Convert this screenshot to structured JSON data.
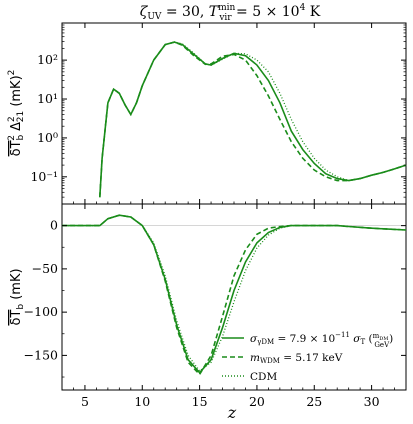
{
  "title": "ζ_UV = 30, T_vir^min = 5 × 10⁴ K",
  "colors": {
    "series": "#1a8c1a",
    "zero_line": "#c8c8c8"
  },
  "chart_data": [
    {
      "type": "line",
      "panel": "top",
      "ylabel": "δT_b² Δ²₂₁ (mK)²",
      "xlabel": "",
      "yscale": "log",
      "xlim": [
        3,
        33
      ],
      "ylim": [
        0.02,
        900
      ],
      "xticks": [
        5,
        10,
        15,
        20,
        25,
        30
      ],
      "yticks": [
        {
          "value": 0.1,
          "label": "10⁻¹"
        },
        {
          "value": 1,
          "label": "10⁰"
        },
        {
          "value": 10,
          "label": "10¹"
        },
        {
          "value": 100,
          "label": "10²"
        }
      ],
      "series": [
        {
          "name": "σ_γDM = 7.9 × 10⁻¹¹ σ_T (m_DM/GeV)",
          "style": "solid",
          "x": [
            6.3,
            6.5,
            7.0,
            7.5,
            8.0,
            8.5,
            9.0,
            9.5,
            10.0,
            11.0,
            12.0,
            12.8,
            13.5,
            14.5,
            15.5,
            16.0,
            17.0,
            18.0,
            19.0,
            20.0,
            21.0,
            22.0,
            23.0,
            24.0,
            25.0,
            26.0,
            27.0,
            28.0,
            29.0,
            30.0,
            31.0,
            32.0,
            33.0
          ],
          "y": [
            0.03,
            0.3,
            8,
            18,
            14,
            7,
            4,
            8,
            22,
            100,
            250,
            290,
            250,
            140,
            80,
            75,
            110,
            150,
            130,
            75,
            30,
            8,
            1.5,
            0.5,
            0.22,
            0.12,
            0.09,
            0.08,
            0.09,
            0.11,
            0.13,
            0.16,
            0.2
          ]
        },
        {
          "name": "m_WDM = 5.17 keV",
          "style": "dashed",
          "x": [
            6.3,
            6.5,
            7.0,
            7.5,
            8.0,
            8.5,
            9.0,
            9.5,
            10.0,
            11.0,
            12.0,
            12.8,
            13.5,
            14.5,
            15.5,
            16.0,
            17.0,
            18.0,
            19.0,
            20.0,
            21.0,
            22.0,
            23.0,
            24.0,
            25.0,
            26.0,
            27.0,
            28.0,
            29.0,
            30.0,
            31.0,
            32.0,
            33.0
          ],
          "y": [
            0.03,
            0.3,
            8,
            18,
            14,
            7,
            4,
            8,
            22,
            100,
            250,
            290,
            240,
            130,
            78,
            80,
            125,
            140,
            100,
            40,
            12,
            3,
            0.8,
            0.3,
            0.15,
            0.1,
            0.08,
            0.08,
            0.09,
            0.11,
            0.13,
            0.16,
            0.2
          ]
        },
        {
          "name": "CDM",
          "style": "dotted",
          "x": [
            6.3,
            6.5,
            7.0,
            7.5,
            8.0,
            8.5,
            9.0,
            9.5,
            10.0,
            11.0,
            12.0,
            12.8,
            13.5,
            14.5,
            15.5,
            16.0,
            17.0,
            18.0,
            19.0,
            20.0,
            21.0,
            22.0,
            23.0,
            24.0,
            25.0,
            26.0,
            27.0,
            28.0,
            29.0,
            30.0,
            31.0,
            32.0,
            33.0
          ],
          "y": [
            0.03,
            0.3,
            8,
            18,
            14,
            7,
            4,
            8,
            22,
            100,
            250,
            290,
            260,
            150,
            80,
            74,
            105,
            150,
            145,
            100,
            50,
            14,
            3,
            0.8,
            0.3,
            0.15,
            0.1,
            0.08,
            0.09,
            0.11,
            0.13,
            0.16,
            0.2
          ]
        }
      ]
    },
    {
      "type": "line",
      "panel": "bottom",
      "ylabel": "δT_b (mK)",
      "xlabel": "z",
      "xlim": [
        3,
        33
      ],
      "ylim": [
        -190,
        25
      ],
      "xticks": [
        5,
        10,
        15,
        20,
        25,
        30
      ],
      "yticks": [
        {
          "value": 0,
          "label": "0"
        },
        {
          "value": -50,
          "label": "−50"
        },
        {
          "value": -100,
          "label": "−100"
        },
        {
          "value": -150,
          "label": "−150"
        }
      ],
      "legend": "bottom-right",
      "series": [
        {
          "name": "σ_γDM = 7.9 × 10⁻¹¹ σ_T (m_DM/GeV)",
          "style": "solid",
          "x": [
            3,
            6.3,
            7.0,
            8.0,
            9.0,
            10.0,
            11.0,
            12.0,
            13.0,
            14.0,
            15.0,
            16.0,
            17.0,
            18.0,
            19.0,
            20.0,
            21.0,
            22.0,
            23.0,
            24.0,
            25.0,
            26.0,
            27.0,
            28.0,
            30.0,
            33.0
          ],
          "y": [
            0,
            0,
            8,
            12,
            10,
            0,
            -22,
            -62,
            -115,
            -155,
            -170,
            -155,
            -118,
            -75,
            -42,
            -20,
            -8,
            -2,
            0,
            0,
            0,
            0,
            0,
            -1,
            -3,
            -5
          ]
        },
        {
          "name": "m_WDM = 5.17 keV",
          "style": "dashed",
          "x": [
            3,
            6.3,
            7.0,
            8.0,
            9.0,
            10.0,
            11.0,
            12.0,
            13.0,
            14.0,
            15.0,
            16.0,
            17.0,
            18.0,
            19.0,
            20.0,
            21.0,
            22.0,
            23.0,
            24.0,
            25.0,
            26.0,
            27.0,
            28.0,
            30.0,
            33.0
          ],
          "y": [
            0,
            0,
            8,
            12,
            10,
            0,
            -22,
            -64,
            -118,
            -158,
            -172,
            -150,
            -105,
            -58,
            -28,
            -10,
            -3,
            -1,
            0,
            0,
            0,
            0,
            0,
            -1,
            -3,
            -5
          ]
        },
        {
          "name": "CDM",
          "style": "dotted",
          "x": [
            3,
            6.3,
            7.0,
            8.0,
            9.0,
            10.0,
            11.0,
            12.0,
            13.0,
            14.0,
            15.0,
            16.0,
            17.0,
            18.0,
            19.0,
            20.0,
            21.0,
            22.0,
            23.0,
            24.0,
            25.0,
            26.0,
            27.0,
            28.0,
            30.0,
            33.0
          ],
          "y": [
            0,
            0,
            8,
            12,
            10,
            0,
            -20,
            -58,
            -110,
            -150,
            -168,
            -158,
            -128,
            -88,
            -52,
            -26,
            -11,
            -3,
            0,
            0,
            0,
            0,
            0,
            -1,
            -3,
            -5
          ]
        }
      ]
    }
  ]
}
